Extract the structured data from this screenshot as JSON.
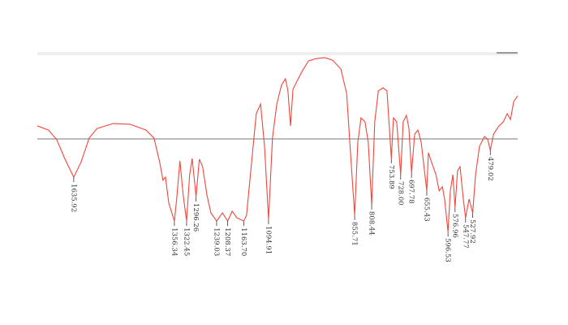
{
  "chart_data": {
    "type": "line",
    "color": "#f0463c",
    "xlim": [
      1737,
      403
    ],
    "ylim": [
      0,
      100
    ],
    "x": [
      1737,
      1706,
      1683,
      1661,
      1635.92,
      1616,
      1593,
      1571,
      1526,
      1480,
      1435,
      1413,
      1397,
      1388,
      1381,
      1372,
      1356.34,
      1350,
      1341,
      1332,
      1322.45,
      1314,
      1307,
      1300,
      1296.26,
      1287,
      1278,
      1266,
      1255,
      1239.03,
      1223,
      1208.37,
      1196,
      1183,
      1163.7,
      1156,
      1142,
      1129,
      1117,
      1106,
      1094.91,
      1084,
      1072,
      1059,
      1048,
      1041,
      1034,
      1027,
      1016,
      1002,
      984,
      962,
      939,
      917,
      894,
      878,
      867,
      855.71,
      847,
      838,
      827,
      818,
      808.44,
      800,
      790,
      777,
      766,
      753.89,
      748,
      739,
      728.0,
      721,
      712,
      705,
      697.78,
      689,
      680,
      671,
      655.43,
      651,
      642,
      630,
      621,
      612,
      606,
      596.53,
      590,
      583,
      576.96,
      570,
      563,
      554,
      547.77,
      538,
      527.92,
      520,
      509,
      495,
      486,
      479.02,
      470,
      455,
      443,
      432,
      423,
      414,
      403
    ],
    "values": [
      60.3,
      58.0,
      52.7,
      42.4,
      32.1,
      40.2,
      53.6,
      58.9,
      61.6,
      61.2,
      58.0,
      53.6,
      40.2,
      30.4,
      32.1,
      17.9,
      8.0,
      20.1,
      41.1,
      22.3,
      8.0,
      33.5,
      42.4,
      29.0,
      21.4,
      42.0,
      37.9,
      22.3,
      12.5,
      8.0,
      12.5,
      8.0,
      13.4,
      9.8,
      8.0,
      11.2,
      40.2,
      67.0,
      72.3,
      49.1,
      8.9,
      53.6,
      72.3,
      82.6,
      86.2,
      79.5,
      60.3,
      80.4,
      84.8,
      90.2,
      96.0,
      97.3,
      97.8,
      96.4,
      91.5,
      78.1,
      44.6,
      11.2,
      51.3,
      64.7,
      62.5,
      51.3,
      17.0,
      62.5,
      79.5,
      81.2,
      79.5,
      42.4,
      64.7,
      62.5,
      33.5,
      62.5,
      66.1,
      58.9,
      34.4,
      55.8,
      58.0,
      51.3,
      24.6,
      45.5,
      40.2,
      33.5,
      24.6,
      26.8,
      20.1,
      2.2,
      24.6,
      33.5,
      15.6,
      35.7,
      37.9,
      20.1,
      9.8,
      20.1,
      12.5,
      33.5,
      49.1,
      54.5,
      52.7,
      46.9,
      55.8,
      60.3,
      62.5,
      67.0,
      63.8,
      73.7,
      76.8
    ],
    "peaks": {
      "x": [
        1635.92,
        1356.34,
        1322.45,
        1296.26,
        1239.03,
        1208.37,
        1163.7,
        1094.91,
        855.71,
        808.44,
        753.89,
        728.0,
        697.78,
        655.43,
        596.53,
        576.96,
        547.77,
        527.92,
        479.02
      ],
      "value_labels": [
        "1635.92",
        "1356.34",
        "1322.45",
        "1296.26",
        "1239.03",
        "1208.37",
        "1163.70",
        "1094.91",
        "855.71",
        "808.44",
        "753.89",
        "728.00",
        "697.78",
        "655.43",
        "596.53",
        "576.96",
        "547.77",
        "527.92",
        "479.02"
      ]
    }
  }
}
